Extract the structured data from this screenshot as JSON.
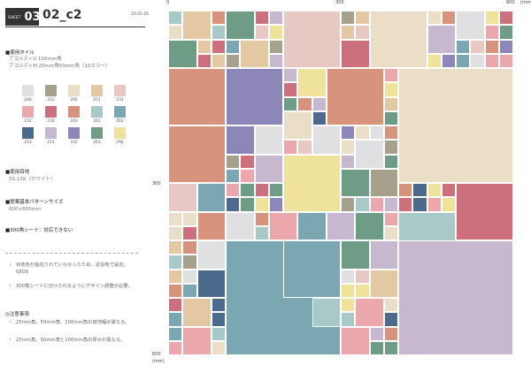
{
  "header": {
    "sheet_label": "SHEET",
    "sheet_number": "03",
    "code": "02_c2",
    "date": "20.05.05"
  },
  "tiles": {
    "title": "■使用タイル",
    "lines": [
      "アコルディU 100mm角",
      "アコルディM 25mm角50mm角（15カラー）"
    ]
  },
  "colors": [
    {
      "code": "200",
      "hex": "#e0e0e2"
    },
    {
      "code": "212",
      "hex": "#a6a18c"
    },
    {
      "code": "202",
      "hex": "#eadfc6"
    },
    {
      "code": "251",
      "hex": "#e3c8a4"
    },
    {
      "code": "231",
      "hex": "#e8c8c2"
    },
    {
      "code": "232",
      "hex": "#eaa8ac"
    },
    {
      "code": "233",
      "hex": "#cc707e"
    },
    {
      "code": "243",
      "hex": "#d8937c"
    },
    {
      "code": "261",
      "hex": "#a9c8c8"
    },
    {
      "code": "262",
      "hex": "#7aa7b2"
    },
    {
      "code": "253",
      "hex": "#4c6a8c"
    },
    {
      "code": "221",
      "hex": "#c6b8ce"
    },
    {
      "code": "222",
      "hex": "#8c87b8"
    },
    {
      "code": "263",
      "hex": "#6e9c86"
    },
    {
      "code": "292",
      "hex": "#efe39c"
    }
  ],
  "joint": {
    "title": "■使用目地",
    "value": "SS-11K（ホワイト）"
  },
  "pattern": {
    "title": "■提案基本パターンサイズ",
    "value": "600×600mm"
  },
  "sheet300": {
    "title": "■300角シート：対応できない"
  },
  "notes": [
    "目地色が指定されていなかったため、近似色で設定。08OS",
    "300角シートに分けられるようにデザイン調整が必要。"
  ],
  "caution": {
    "title": "◎注意事項",
    "items": [
      "25mm角、50mm角、100mm角の目地幅が異なる。",
      "25mm角、50mm角と100mm角の厚みが異なる。"
    ]
  },
  "axis": {
    "x0": "0",
    "x300": "300",
    "x600": "600",
    "unit": "(mm)",
    "y300": "300",
    "y600": "600"
  }
}
